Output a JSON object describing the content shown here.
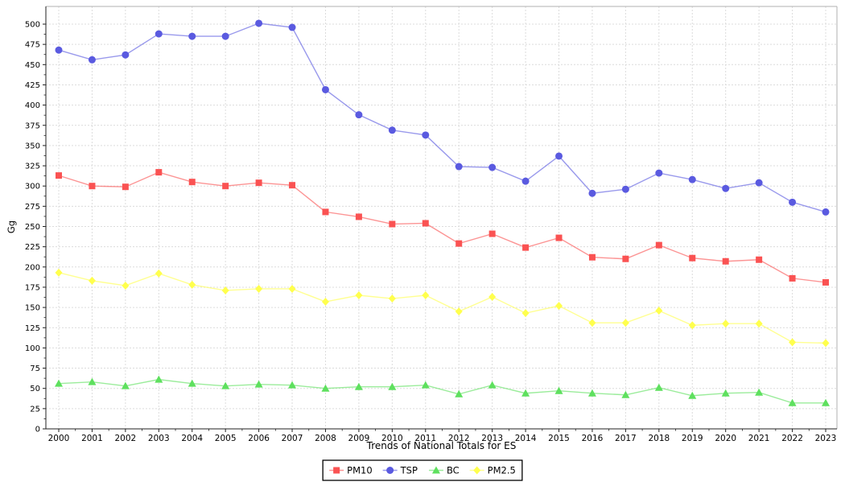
{
  "figure": {
    "background": "#ffffff",
    "spine_color_main": "#222222",
    "spine_color_light": "#b0b0b0",
    "grid_color": "#dcdcdc"
  },
  "chart_data": {
    "type": "line",
    "title": "Trends of National Totals for ES",
    "ylabel": "Gg",
    "x": [
      2000,
      2001,
      2002,
      2003,
      2004,
      2005,
      2006,
      2007,
      2008,
      2009,
      2010,
      2011,
      2012,
      2013,
      2014,
      2015,
      2016,
      2017,
      2018,
      2019,
      2020,
      2021,
      2022,
      2023
    ],
    "yticks": [
      0,
      25,
      50,
      75,
      100,
      125,
      150,
      175,
      200,
      225,
      250,
      275,
      300,
      325,
      350,
      375,
      400,
      425,
      450,
      475,
      500
    ],
    "ylim": [
      0,
      522
    ],
    "grid": true,
    "legend_position": "bottom-center",
    "series": [
      {
        "name": "PM10",
        "marker": "square",
        "color": "#fa5252",
        "values": [
          313,
          300,
          299,
          317,
          305,
          300,
          304,
          301,
          268,
          262,
          253,
          254,
          229,
          241,
          224,
          236,
          212,
          210,
          227,
          211,
          207,
          209,
          186,
          181
        ]
      },
      {
        "name": "TSP",
        "marker": "circle",
        "color": "#5a5ae0",
        "values": [
          468,
          456,
          462,
          488,
          485,
          485,
          501,
          496,
          419,
          388,
          369,
          363,
          324,
          323,
          306,
          337,
          291,
          296,
          316,
          308,
          297,
          304,
          280,
          268
        ]
      },
      {
        "name": "BC",
        "marker": "triangle-up",
        "color": "#5ee05e",
        "values": [
          56,
          58,
          53,
          61,
          56,
          53,
          55,
          54,
          50,
          52,
          52,
          54,
          43,
          54,
          44,
          47,
          44,
          42,
          51,
          41,
          44,
          45,
          32,
          32
        ]
      },
      {
        "name": "PM2.5",
        "marker": "diamond",
        "color": "#ffff4d",
        "values": [
          193,
          183,
          177,
          192,
          178,
          171,
          173,
          173,
          157,
          165,
          161,
          165,
          145,
          163,
          143,
          152,
          131,
          131,
          146,
          128,
          130,
          130,
          107,
          106
        ]
      }
    ]
  }
}
